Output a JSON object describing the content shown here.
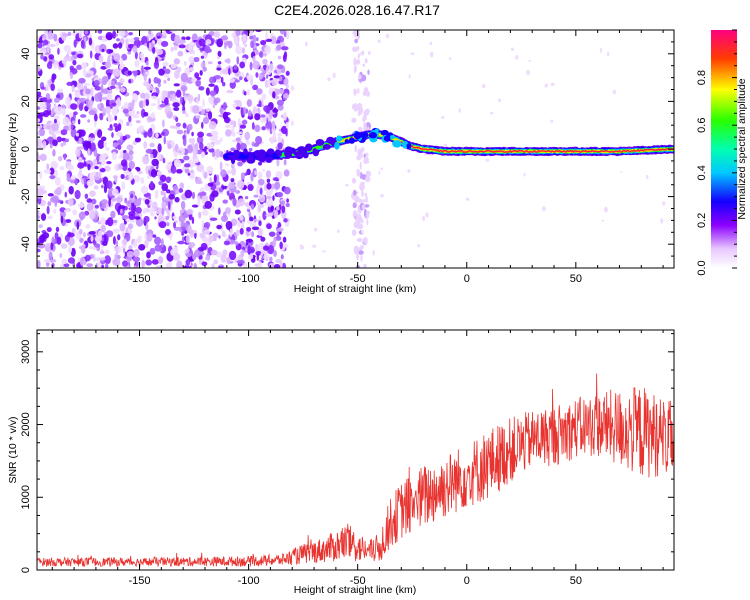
{
  "title": "C2E4.2026.028.16.47.R17",
  "chart_data": [
    {
      "type": "heatmap",
      "name": "spectrogram",
      "xlabel": "Height of straight line (km)",
      "ylabel": "Frequency (Hz)",
      "xlim": [
        -197,
        95
      ],
      "ylim": [
        -50,
        50
      ],
      "xticks": [
        -150,
        -100,
        -50,
        0,
        50
      ],
      "xtick_labels": [
        "-150",
        "-100",
        "-50",
        "0",
        "50"
      ],
      "yticks": [
        -40,
        -20,
        0,
        20,
        40
      ],
      "ytick_labels": [
        "-40",
        "-20",
        "0",
        "20",
        "40"
      ],
      "ridge_track": {
        "height_km": [
          -110,
          -100,
          -90,
          -80,
          -70,
          -60,
          -50,
          -45,
          -40,
          -35,
          -30,
          -25,
          -20,
          -10,
          0,
          10,
          30,
          50,
          70,
          95
        ],
        "frequency_hz": [
          -3,
          -3,
          -3,
          -2,
          0,
          3,
          5,
          6,
          6,
          5,
          3,
          1,
          0,
          -1,
          -1,
          -1,
          -1,
          -1,
          -1,
          0
        ]
      },
      "noise_region_km": [
        -197,
        -82
      ],
      "noise_band_km": [
        -52,
        -45
      ],
      "colorbar": {
        "label": "Normalized spectral amplitude",
        "range": [
          0,
          1
        ],
        "ticks": [
          0.0,
          0.2,
          0.4,
          0.6,
          0.8
        ],
        "tick_labels": [
          "0.0",
          "0.2",
          "0.4",
          "0.6",
          "0.8"
        ]
      }
    },
    {
      "type": "line",
      "name": "snr",
      "xlabel": "Height of straight line (km)",
      "ylabel": "SNR (10 * v/v)",
      "xlim": [
        -197,
        95
      ],
      "ylim": [
        0,
        3300
      ],
      "xticks": [
        -150,
        -100,
        -50,
        0,
        50
      ],
      "xtick_labels": [
        "-150",
        "-100",
        "-50",
        "0",
        "50"
      ],
      "yticks": [
        0,
        1000,
        2000,
        3000
      ],
      "ytick_labels": [
        "0",
        "1000",
        "2000",
        "3000"
      ],
      "color": "#e8332f",
      "envelope": {
        "x": [
          -197,
          -150,
          -100,
          -85,
          -75,
          -65,
          -55,
          -50,
          -45,
          -40,
          -35,
          -30,
          -20,
          -10,
          0,
          10,
          20,
          30,
          40,
          50,
          60,
          70,
          80,
          95
        ],
        "mean": [
          110,
          110,
          120,
          140,
          220,
          280,
          380,
          320,
          260,
          300,
          650,
          820,
          1000,
          1150,
          1300,
          1450,
          1650,
          1800,
          1850,
          1950,
          2000,
          1950,
          1900,
          1800
        ],
        "amplitude": [
          60,
          60,
          70,
          80,
          140,
          180,
          260,
          220,
          140,
          220,
          350,
          400,
          450,
          450,
          450,
          500,
          450,
          400,
          420,
          420,
          450,
          550,
          650,
          500
        ]
      }
    }
  ]
}
